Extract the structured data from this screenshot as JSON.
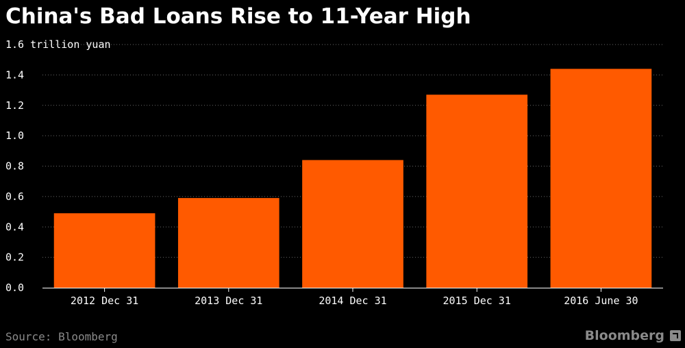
{
  "chart_data": {
    "type": "bar",
    "title": "China's Bad Loans Rise to 11-Year High",
    "ylabel": "trillion yuan",
    "categories": [
      "2012 Dec 31",
      "2013 Dec 31",
      "2014 Dec 31",
      "2015 Dec 31",
      "2016 June 30"
    ],
    "values": [
      0.49,
      0.59,
      0.84,
      1.27,
      1.44
    ],
    "ylim": [
      0,
      1.6
    ],
    "yticks": [
      "0.0",
      "0.2",
      "0.4",
      "0.6",
      "0.8",
      "1.0",
      "1.2",
      "1.4",
      "1.6"
    ],
    "top_tick_label": "1.6 trillion yuan",
    "grid": true,
    "bar_color": "#ff5a00"
  },
  "footer": {
    "source": "Source: Bloomberg",
    "brand": "Bloomberg",
    "brand_icon": "bloomberg-arrow-icon"
  }
}
